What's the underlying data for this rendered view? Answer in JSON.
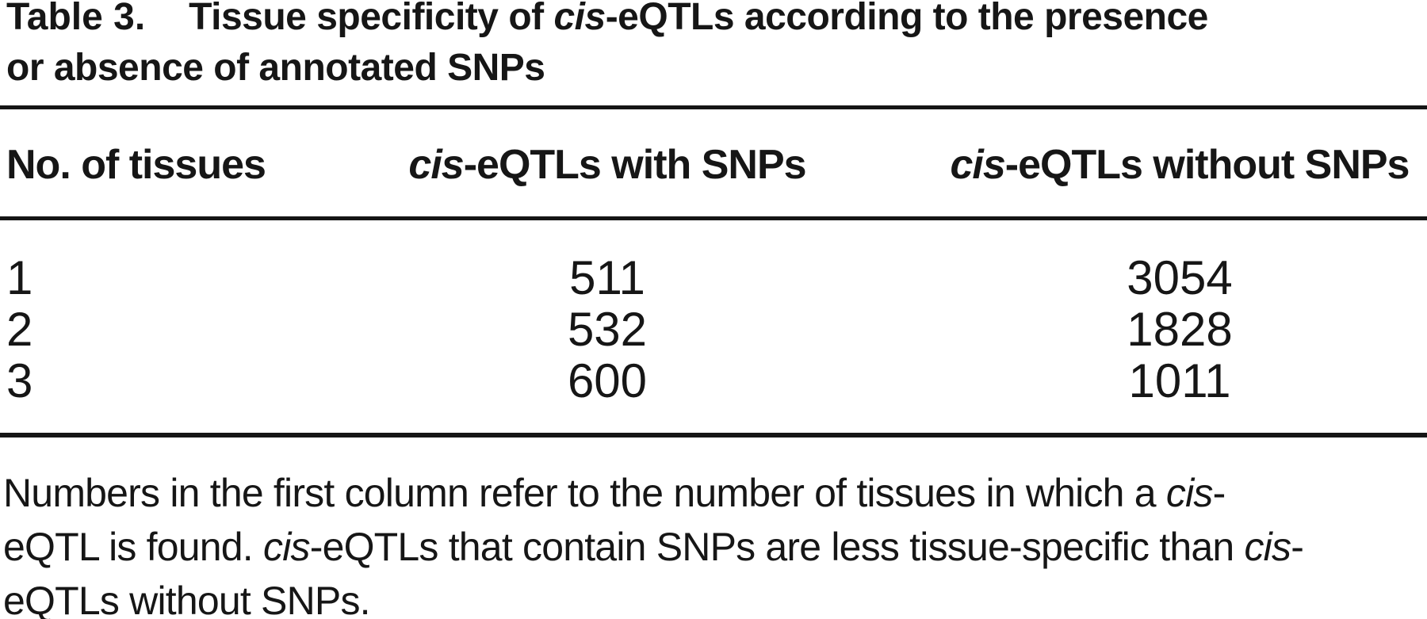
{
  "table": {
    "label": "Table 3.",
    "title_line1": {
      "pre": "Tissue specificity of ",
      "cis": "cis",
      "post": "-eQTLs according to the presence"
    },
    "title_line2": "or absence of annotated SNPs",
    "columns": {
      "col1": "No. of tissues",
      "col2": {
        "cis": "cis",
        "rest": "-eQTLs with SNPs"
      },
      "col3": {
        "cis": "cis",
        "rest": "-eQTLs without SNPs"
      }
    },
    "rows": [
      {
        "tissues": "1",
        "with_snps": "511",
        "without_snps": "3054"
      },
      {
        "tissues": "2",
        "with_snps": "532",
        "without_snps": "1828"
      },
      {
        "tissues": "3",
        "with_snps": "600",
        "without_snps": "1011"
      }
    ],
    "footnote": {
      "line1": {
        "s0": "Numbers in the first column refer to the number of tissues in which a ",
        "s1": "cis",
        "s2": "-"
      },
      "line2": {
        "s0": "eQTL is found. ",
        "s1": "cis",
        "s2": "-eQTLs that contain SNPs are less tissue-specific than ",
        "s3": "cis",
        "s4": "-"
      },
      "line3": "eQTLs without SNPs."
    },
    "text_color": "#161616",
    "rule_color": "#151515"
  },
  "chart_data": {
    "type": "table",
    "title": "Table 3. Tissue specificity of cis-eQTLs according to the presence or absence of annotated SNPs",
    "columns": [
      "No. of tissues",
      "cis-eQTLs with SNPs",
      "cis-eQTLs without SNPs"
    ],
    "rows": [
      [
        1,
        511,
        3054
      ],
      [
        2,
        532,
        1828
      ],
      [
        3,
        600,
        1011
      ]
    ],
    "footnote": "Numbers in the first column refer to the number of tissues in which a cis-eQTL is found. cis-eQTLs that contain SNPs are less tissue-specific than cis-eQTLs without SNPs."
  }
}
